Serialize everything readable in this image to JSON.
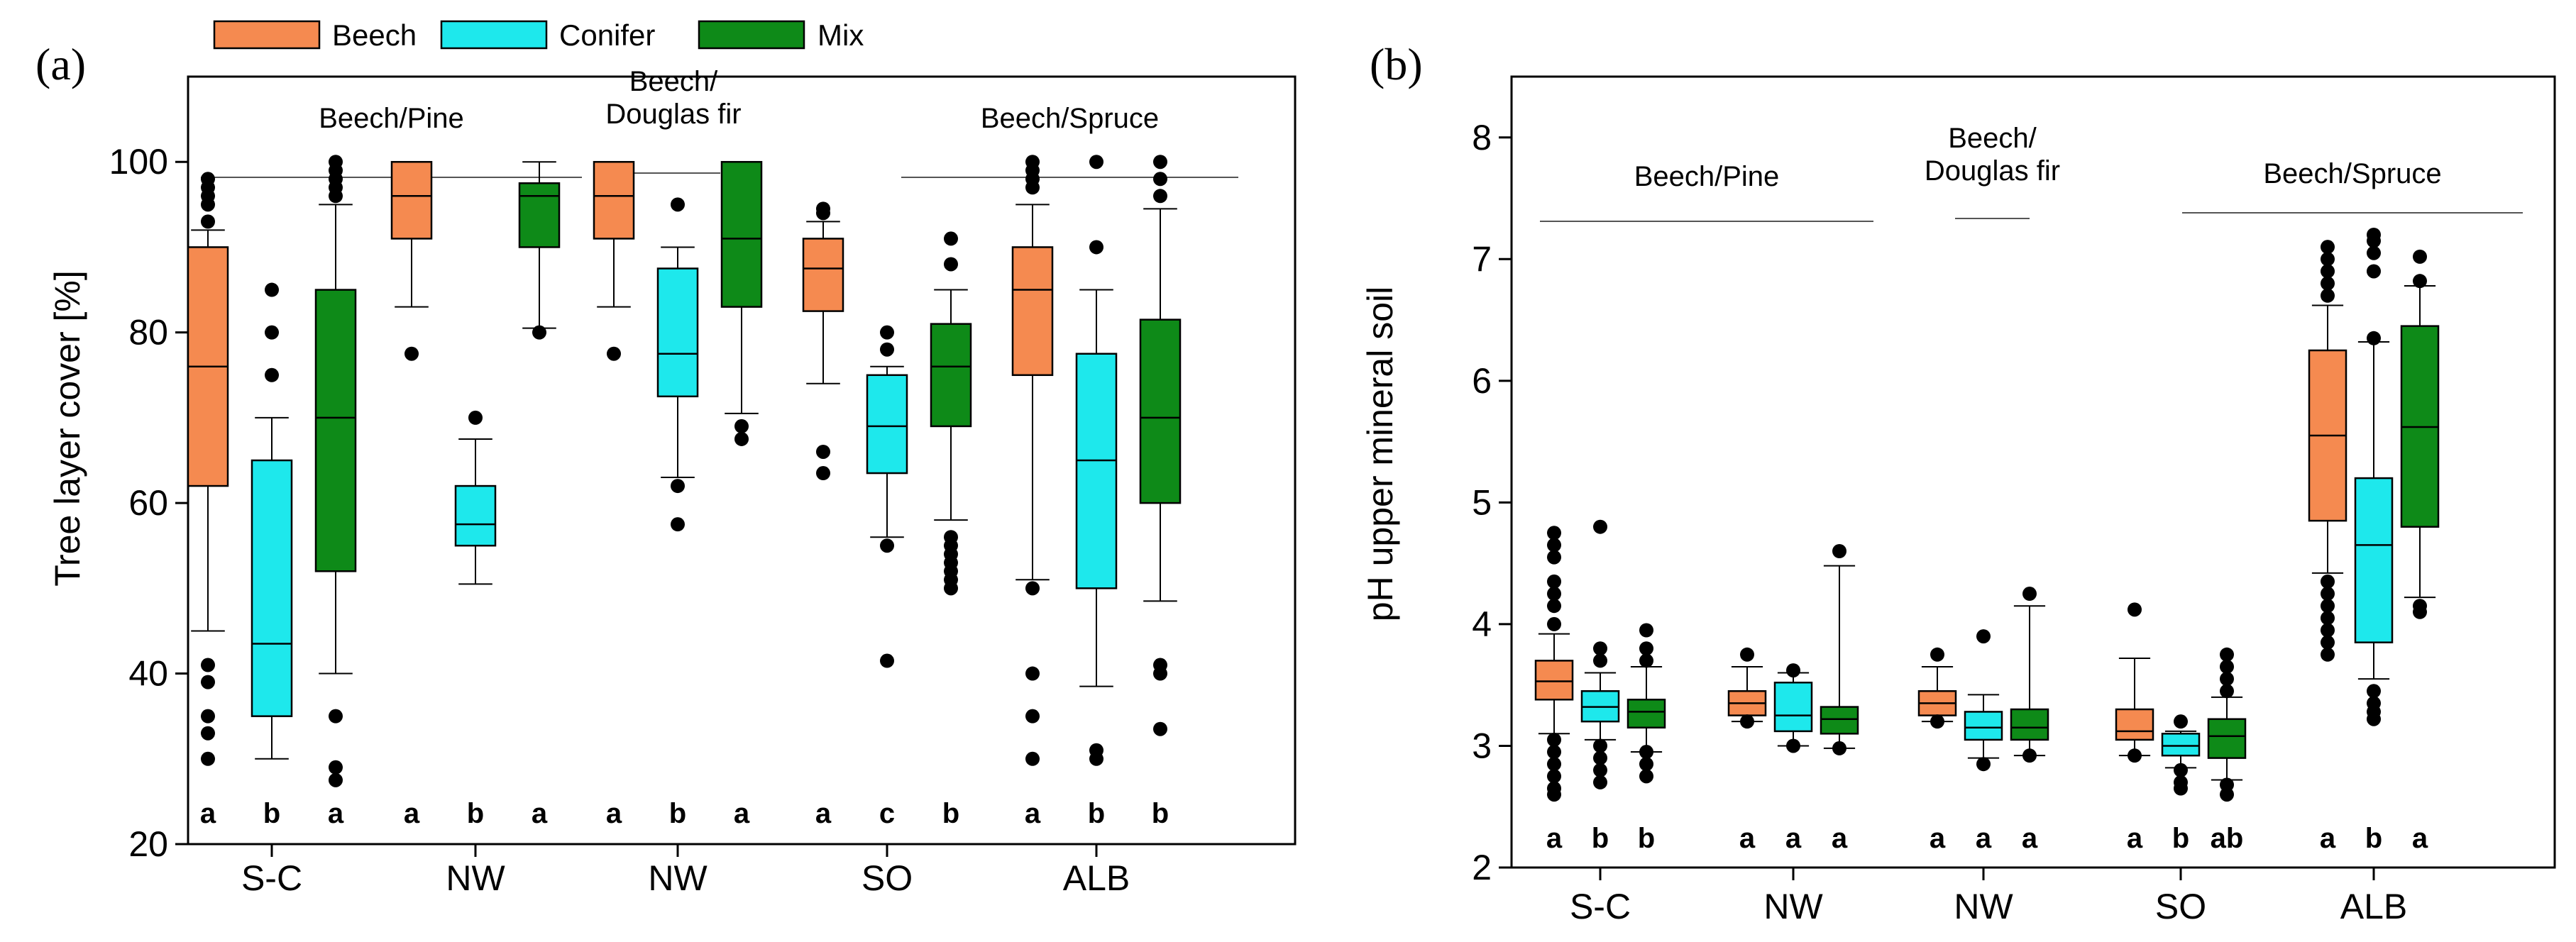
{
  "legend": [
    {
      "key": "beech",
      "label": "Beech",
      "color": "#f58a50"
    },
    {
      "key": "conifer",
      "label": "Conifer",
      "color": "#1ee8ec"
    },
    {
      "key": "mix",
      "label": "Mix",
      "color": "#0e8a18"
    }
  ],
  "chart_data": [
    {
      "type": "box",
      "panel_label": "(a)",
      "ylabel": "Tree layer cover [%]",
      "ylim": [
        20,
        110
      ],
      "yticks": [
        20,
        40,
        60,
        80,
        100
      ],
      "categories": [
        "S-C",
        "NW",
        "NW",
        "SO",
        "ALB"
      ],
      "group_labels": [
        {
          "lines": [
            "Beech/Pine"
          ],
          "span": [
            0,
            1
          ]
        },
        {
          "lines": [
            "Beech/",
            "Douglas fir"
          ],
          "span": [
            2,
            2
          ]
        },
        {
          "lines": [
            "Beech/Spruce"
          ],
          "span": [
            3,
            4
          ]
        }
      ],
      "series": [
        {
          "name": "Beech",
          "boxes": [
            {
              "whislo": 45,
              "q1": 62,
              "med": 76,
              "q3": 90,
              "whishi": 92,
              "fliers": [
                41,
                39,
                35,
                33,
                30,
                93,
                95,
                96,
                97,
                98
              ]
            },
            {
              "whislo": 83,
              "q1": 91,
              "med": 96,
              "q3": 100,
              "whishi": 100,
              "fliers": [
                77.5
              ]
            },
            {
              "whislo": 83,
              "q1": 91,
              "med": 96,
              "q3": 100,
              "whishi": 100,
              "fliers": [
                77.5
              ]
            },
            {
              "whislo": 74,
              "q1": 82.5,
              "med": 87.5,
              "q3": 91,
              "whishi": 93,
              "fliers": [
                66,
                63.5,
                94,
                94.5
              ]
            },
            {
              "whislo": 51,
              "q1": 75,
              "med": 85,
              "q3": 90,
              "whishi": 95,
              "fliers": [
                50,
                40,
                35,
                30,
                97,
                98,
                99,
                100
              ]
            }
          ]
        },
        {
          "name": "Conifer",
          "boxes": [
            {
              "whislo": 30,
              "q1": 35,
              "med": 43.5,
              "q3": 65,
              "whishi": 70,
              "fliers": [
                75,
                80,
                85
              ]
            },
            {
              "whislo": 50.5,
              "q1": 55,
              "med": 57.5,
              "q3": 62,
              "whishi": 67.5,
              "fliers": [
                70
              ]
            },
            {
              "whislo": 63,
              "q1": 72.5,
              "med": 77.5,
              "q3": 87.5,
              "whishi": 90,
              "fliers": [
                57.5,
                62,
                95
              ]
            },
            {
              "whislo": 56,
              "q1": 63.5,
              "med": 69,
              "q3": 75,
              "whishi": 76,
              "fliers": [
                55,
                41.5,
                78,
                80
              ]
            },
            {
              "whislo": 38.5,
              "q1": 50,
              "med": 65,
              "q3": 77.5,
              "whishi": 85,
              "fliers": [
                31,
                30,
                90,
                100
              ]
            }
          ]
        },
        {
          "name": "Mix",
          "boxes": [
            {
              "whislo": 40,
              "q1": 52,
              "med": 70,
              "q3": 85,
              "whishi": 95,
              "fliers": [
                35,
                29,
                27.5,
                96,
                97,
                98,
                99,
                100
              ]
            },
            {
              "whislo": 80.5,
              "q1": 90,
              "med": 96,
              "q3": 97.5,
              "whishi": 100,
              "fliers": [
                80
              ]
            },
            {
              "whislo": 70.5,
              "q1": 83,
              "med": 91,
              "q3": 100,
              "whishi": 100,
              "fliers": [
                67.5,
                69
              ]
            },
            {
              "whislo": 58,
              "q1": 69,
              "med": 76,
              "q3": 81,
              "whishi": 85,
              "fliers": [
                56,
                55,
                54,
                53,
                52,
                51,
                50,
                88,
                91
              ]
            },
            {
              "whislo": 48.5,
              "q1": 60,
              "med": 70,
              "q3": 81.5,
              "whishi": 94.5,
              "fliers": [
                41,
                40,
                33.5,
                96,
                98,
                100
              ]
            }
          ]
        }
      ],
      "significance": [
        [
          "a",
          "b",
          "a"
        ],
        [
          "a",
          "b",
          "a"
        ],
        [
          "a",
          "b",
          "a"
        ],
        [
          "a",
          "c",
          "b"
        ],
        [
          "a",
          "b",
          "b"
        ]
      ]
    },
    {
      "type": "box",
      "panel_label": "(b)",
      "ylabel": "pH upper mineral soil",
      "ylim": [
        2,
        8.5
      ],
      "yticks": [
        2,
        3,
        4,
        5,
        6,
        7,
        8
      ],
      "categories": [
        "S-C",
        "NW",
        "NW",
        "SO",
        "ALB"
      ],
      "group_labels": [
        {
          "lines": [
            "Beech/Pine"
          ],
          "span": [
            0,
            1
          ]
        },
        {
          "lines": [
            "Beech/",
            "Douglas fir"
          ],
          "span": [
            2,
            2
          ]
        },
        {
          "lines": [
            "Beech/Spruce"
          ],
          "span": [
            3,
            4
          ]
        }
      ],
      "series": [
        {
          "name": "Beech",
          "boxes": [
            {
              "whislo": 3.1,
              "q1": 3.38,
              "med": 3.53,
              "q3": 3.7,
              "whishi": 3.92,
              "fliers": [
                3.05,
                2.95,
                2.85,
                2.75,
                2.65,
                2.6,
                4.0,
                4.15,
                4.25,
                4.35,
                4.55,
                4.65,
                4.75
              ]
            },
            {
              "whislo": 3.2,
              "q1": 3.25,
              "med": 3.35,
              "q3": 3.45,
              "whishi": 3.65,
              "fliers": [
                3.2,
                3.75
              ]
            },
            {
              "whislo": 3.2,
              "q1": 3.25,
              "med": 3.35,
              "q3": 3.45,
              "whishi": 3.65,
              "fliers": [
                3.2,
                3.75
              ]
            },
            {
              "whislo": 2.92,
              "q1": 3.05,
              "med": 3.12,
              "q3": 3.3,
              "whishi": 3.72,
              "fliers": [
                2.92,
                4.12
              ]
            },
            {
              "whislo": 4.42,
              "q1": 4.85,
              "med": 5.55,
              "q3": 6.25,
              "whishi": 6.62,
              "fliers": [
                4.35,
                4.25,
                4.15,
                4.05,
                3.95,
                3.85,
                3.75,
                6.7,
                6.8,
                6.9,
                7.0,
                7.1
              ]
            }
          ]
        },
        {
          "name": "Conifer",
          "boxes": [
            {
              "whislo": 3.05,
              "q1": 3.2,
              "med": 3.32,
              "q3": 3.45,
              "whishi": 3.6,
              "fliers": [
                3.0,
                2.9,
                2.8,
                2.7,
                3.7,
                3.8,
                4.8
              ]
            },
            {
              "whislo": 3.0,
              "q1": 3.12,
              "med": 3.25,
              "q3": 3.52,
              "whishi": 3.6,
              "fliers": [
                3.0,
                3.62
              ]
            },
            {
              "whislo": 2.9,
              "q1": 3.05,
              "med": 3.15,
              "q3": 3.28,
              "whishi": 3.42,
              "fliers": [
                2.85,
                3.9
              ]
            },
            {
              "whislo": 2.82,
              "q1": 2.92,
              "med": 3.0,
              "q3": 3.1,
              "whishi": 3.12,
              "fliers": [
                2.8,
                2.7,
                2.65,
                3.2
              ]
            },
            {
              "whislo": 3.55,
              "q1": 3.85,
              "med": 4.65,
              "q3": 5.2,
              "whishi": 6.32,
              "fliers": [
                3.45,
                3.35,
                3.28,
                3.22,
                6.35,
                6.9,
                7.05,
                7.15,
                7.2
              ]
            }
          ]
        },
        {
          "name": "Mix",
          "boxes": [
            {
              "whislo": 2.95,
              "q1": 3.15,
              "med": 3.28,
              "q3": 3.38,
              "whishi": 3.65,
              "fliers": [
                2.95,
                2.85,
                2.75,
                3.7,
                3.8,
                3.95
              ]
            },
            {
              "whislo": 2.98,
              "q1": 3.1,
              "med": 3.22,
              "q3": 3.32,
              "whishi": 4.48,
              "fliers": [
                2.98,
                4.6
              ]
            },
            {
              "whislo": 2.92,
              "q1": 3.05,
              "med": 3.15,
              "q3": 3.3,
              "whishi": 4.15,
              "fliers": [
                2.92,
                4.25
              ]
            },
            {
              "whislo": 2.72,
              "q1": 2.9,
              "med": 3.08,
              "q3": 3.22,
              "whishi": 3.4,
              "fliers": [
                2.6,
                2.68,
                3.45,
                3.55,
                3.65,
                3.75
              ]
            },
            {
              "whislo": 4.22,
              "q1": 4.8,
              "med": 5.62,
              "q3": 6.45,
              "whishi": 6.78,
              "fliers": [
                4.15,
                4.1,
                6.82,
                7.02
              ]
            }
          ]
        }
      ],
      "significance": [
        [
          "a",
          "b",
          "b"
        ],
        [
          "a",
          "a",
          "a"
        ],
        [
          "a",
          "a",
          "a"
        ],
        [
          "a",
          "b",
          "ab"
        ],
        [
          "a",
          "b",
          "a"
        ]
      ]
    }
  ]
}
